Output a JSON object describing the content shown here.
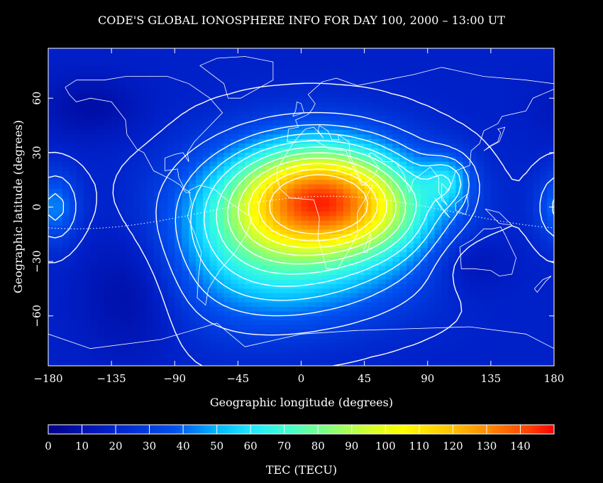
{
  "chart_data": {
    "type": "heatmap",
    "title": "CODE'S GLOBAL IONOSPHERE INFO FOR DAY 100, 2000 – 13:00 UT",
    "xlabel": "Geographic longitude (degrees)",
    "ylabel": "Geographic latitude (degrees)",
    "xlim": [
      -180,
      180
    ],
    "ylim": [
      -87.5,
      87.5
    ],
    "x_ticks": [
      -180,
      -135,
      -90,
      -45,
      0,
      45,
      90,
      135,
      180
    ],
    "y_ticks": [
      -60,
      -30,
      0,
      30,
      60
    ],
    "colorbar": {
      "label": "TEC (TECU)",
      "range": [
        0,
        150
      ],
      "ticks": [
        0,
        10,
        20,
        30,
        40,
        50,
        60,
        70,
        80,
        90,
        100,
        110,
        120,
        130,
        140
      ],
      "step": 10
    },
    "features": {
      "peak": {
        "lon": 15,
        "lat": 5,
        "value": 125
      },
      "secondary_peak": {
        "lon": 105,
        "lat": 15,
        "value": 45
      },
      "minima": [
        {
          "lon": -150,
          "lat": 55,
          "value": 10
        },
        {
          "lon": -120,
          "lat": -55,
          "value": 8
        },
        {
          "lon": 130,
          "lat": -65,
          "value": 25
        },
        {
          "lon": 120,
          "lat": -30,
          "value": 10
        }
      ]
    },
    "contours": true,
    "coastlines": true,
    "magnetic_equator": true
  }
}
